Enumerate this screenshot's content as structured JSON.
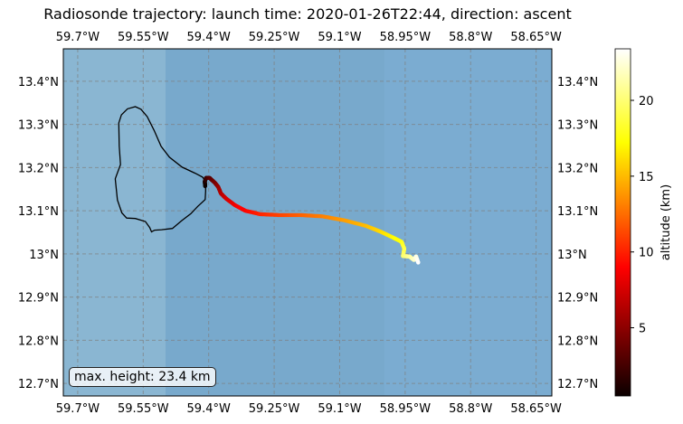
{
  "title": "Radiosonde trajectory: launch time: 2020-01-26T22:44, direction: ascent",
  "info_box": "max. height: 23.4 km",
  "colors": {
    "sea": "#7bacd1",
    "sea_dark": "#77a7c9",
    "land_shade": "#8ab6d2",
    "coastline": "#000000",
    "gridline": "#7f7f7f",
    "colormap": "hot"
  },
  "map": {
    "extent_lon": [
      -59.733,
      -58.614
    ],
    "extent_lat": [
      12.671,
      13.475
    ],
    "lon_ticks": [
      -59.7,
      -59.55,
      -59.4,
      -59.25,
      -59.1,
      -58.95,
      -58.8,
      -58.65
    ],
    "lon_labels": [
      "59.7°W",
      "59.55°W",
      "59.4°W",
      "59.25°W",
      "59.1°W",
      "58.95°W",
      "58.8°W",
      "58.65°W"
    ],
    "lat_ticks": [
      12.7,
      12.8,
      12.9,
      13.0,
      13.1,
      13.2,
      13.3,
      13.4
    ],
    "lat_labels": [
      "12.7°N",
      "12.8°N",
      "12.9°N",
      "13°N",
      "13.1°N",
      "13.2°N",
      "13.3°N",
      "13.4°N"
    ],
    "gridlines": "dashed",
    "coastline_barbados": [
      [
        -59.614,
        13.174
      ],
      [
        -59.602,
        13.207
      ],
      [
        -59.605,
        13.25
      ],
      [
        -59.606,
        13.303
      ],
      [
        -59.6,
        13.322
      ],
      [
        -59.586,
        13.336
      ],
      [
        -59.568,
        13.341
      ],
      [
        -59.555,
        13.335
      ],
      [
        -59.541,
        13.318
      ],
      [
        -59.525,
        13.286
      ],
      [
        -59.509,
        13.249
      ],
      [
        -59.49,
        13.224
      ],
      [
        -59.461,
        13.201
      ],
      [
        -59.431,
        13.187
      ],
      [
        -59.414,
        13.178
      ],
      [
        -59.407,
        13.168
      ],
      [
        -59.407,
        13.145
      ],
      [
        -59.408,
        13.126
      ],
      [
        -59.425,
        13.11
      ],
      [
        -59.441,
        13.093
      ],
      [
        -59.462,
        13.077
      ],
      [
        -59.483,
        13.059
      ],
      [
        -59.508,
        13.056
      ],
      [
        -59.524,
        13.055
      ],
      [
        -59.531,
        13.051
      ],
      [
        -59.535,
        13.061
      ],
      [
        -59.545,
        13.075
      ],
      [
        -59.568,
        13.082
      ],
      [
        -59.588,
        13.083
      ],
      [
        -59.599,
        13.095
      ],
      [
        -59.609,
        13.125
      ],
      [
        -59.614,
        13.174
      ]
    ]
  },
  "colorbar": {
    "label": "altitude (km)",
    "range": [
      0.5,
      23.4
    ],
    "ticks": [
      5,
      10,
      15,
      20
    ]
  },
  "chart_data": {
    "type": "trajectory",
    "title": "Radiosonde trajectory: launch time: 2020-01-26T22:44, direction: ascent",
    "xlabel": "",
    "ylabel": "",
    "color_variable": "altitude (km)",
    "points": [
      {
        "lon": -59.408,
        "lat": 13.157,
        "alt": 0.1
      },
      {
        "lon": -59.409,
        "lat": 13.168,
        "alt": 1.0
      },
      {
        "lon": -59.406,
        "lat": 13.176,
        "alt": 2.0
      },
      {
        "lon": -59.398,
        "lat": 13.176,
        "alt": 3.0
      },
      {
        "lon": -59.386,
        "lat": 13.165,
        "alt": 4.0
      },
      {
        "lon": -59.378,
        "lat": 13.155,
        "alt": 5.0
      },
      {
        "lon": -59.372,
        "lat": 13.14,
        "alt": 6.0
      },
      {
        "lon": -59.36,
        "lat": 13.128,
        "alt": 7.0
      },
      {
        "lon": -59.34,
        "lat": 13.113,
        "alt": 8.0
      },
      {
        "lon": -59.316,
        "lat": 13.1,
        "alt": 9.0
      },
      {
        "lon": -59.282,
        "lat": 13.092,
        "alt": 10.0
      },
      {
        "lon": -59.24,
        "lat": 13.09,
        "alt": 11.0
      },
      {
        "lon": -59.19,
        "lat": 13.09,
        "alt": 12.0
      },
      {
        "lon": -59.14,
        "lat": 13.087,
        "alt": 13.0
      },
      {
        "lon": -59.09,
        "lat": 13.078,
        "alt": 14.0
      },
      {
        "lon": -59.04,
        "lat": 13.065,
        "alt": 15.0
      },
      {
        "lon": -59.005,
        "lat": 13.051,
        "alt": 16.0
      },
      {
        "lon": -58.978,
        "lat": 13.038,
        "alt": 17.0
      },
      {
        "lon": -58.958,
        "lat": 13.028,
        "alt": 18.0
      },
      {
        "lon": -58.952,
        "lat": 13.012,
        "alt": 19.0
      },
      {
        "lon": -58.955,
        "lat": 12.995,
        "alt": 20.0
      },
      {
        "lon": -58.94,
        "lat": 12.994,
        "alt": 21.0
      },
      {
        "lon": -58.93,
        "lat": 12.986,
        "alt": 22.0
      },
      {
        "lon": -58.925,
        "lat": 12.994,
        "alt": 22.6
      },
      {
        "lon": -58.92,
        "lat": 12.98,
        "alt": 23.4
      }
    ]
  }
}
